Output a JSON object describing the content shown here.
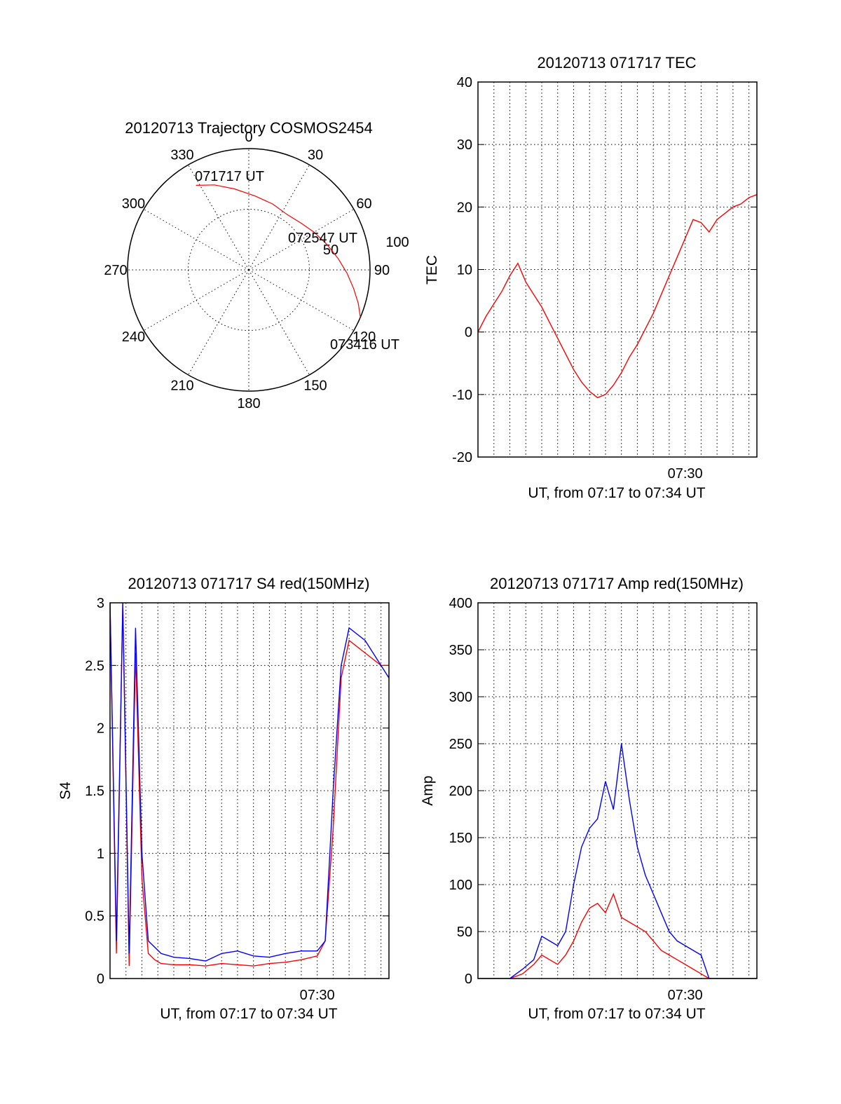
{
  "chart_data": [
    {
      "type": "scatter",
      "subtype": "polar-sky-trajectory",
      "title": "20120713 Trajectory COSMOS2454",
      "azimuth_labels": [
        "0",
        "30",
        "60",
        "90",
        "120",
        "150",
        "180",
        "210",
        "240",
        "270",
        "300",
        "330"
      ],
      "elevation_ring_labels": [
        "50",
        "100"
      ],
      "track_color": "#ff0000",
      "annotations": [
        "071717 UT",
        "072547 UT",
        "073416 UT"
      ],
      "track": [
        {
          "azimuth": 328,
          "zenith_deg": 74
        },
        {
          "azimuth": 338,
          "zenith_deg": 68
        },
        {
          "azimuth": 350,
          "zenith_deg": 61
        },
        {
          "azimuth": 5,
          "zenith_deg": 55
        },
        {
          "azimuth": 20,
          "zenith_deg": 52
        },
        {
          "azimuth": 35,
          "zenith_deg": 50
        },
        {
          "azimuth": 48,
          "zenith_deg": 52
        },
        {
          "azimuth": 60,
          "zenith_deg": 56
        },
        {
          "azimuth": 72,
          "zenith_deg": 61
        },
        {
          "azimuth": 83,
          "zenith_deg": 67
        },
        {
          "azimuth": 92,
          "zenith_deg": 73
        },
        {
          "azimuth": 100,
          "zenith_deg": 79
        },
        {
          "azimuth": 107,
          "zenith_deg": 85
        },
        {
          "azimuth": 113,
          "zenith_deg": 90
        }
      ]
    },
    {
      "type": "line",
      "title": "20120713 071717 TEC",
      "ylabel": "TEC",
      "xlabel": "UT, from 07:17 to 07:34 UT",
      "x_unit": "minutes after 07:17",
      "xlim": [
        0,
        17.5
      ],
      "ylim": [
        -20,
        40
      ],
      "yticks": [
        "40",
        "30",
        "20",
        "10",
        "0",
        "-10",
        "-20"
      ],
      "xtick_labels": [
        {
          "x": 13,
          "label": "07:30"
        }
      ],
      "grid": true,
      "series": [
        {
          "color": "#ff0000",
          "x": [
            0,
            0.5,
            1,
            1.5,
            2,
            2.5,
            3,
            3.5,
            4,
            4.5,
            5,
            5.5,
            6,
            6.5,
            7,
            7.5,
            8,
            8.5,
            9,
            9.5,
            10,
            10.5,
            11,
            11.5,
            12,
            12.5,
            13,
            13.5,
            14,
            14.5,
            15,
            15.5,
            16,
            16.5,
            17,
            17.5
          ],
          "y": [
            0,
            2.5,
            4.5,
            6.5,
            9,
            11,
            8,
            6,
            4,
            1.5,
            -1,
            -3.5,
            -6,
            -8,
            -9.5,
            -10.5,
            -10,
            -8.5,
            -6.5,
            -4,
            -2,
            0.5,
            3,
            6,
            9,
            12,
            15,
            18,
            17.5,
            16,
            18,
            19,
            20,
            20.5,
            21.5,
            22
          ]
        }
      ]
    },
    {
      "type": "line",
      "title": "20120713 071717 S4 red(150MHz)",
      "ylabel": "S4",
      "xlabel": "UT, from 07:17 to 07:34 UT",
      "x_unit": "minutes after 07:17",
      "xlim": [
        0,
        17.5
      ],
      "ylim": [
        0,
        3
      ],
      "yticks": [
        "3",
        "2.5",
        "2",
        "1.5",
        "1",
        "0.5",
        "0"
      ],
      "xtick_labels": [
        {
          "x": 13,
          "label": "07:30"
        }
      ],
      "grid": true,
      "series": [
        {
          "color": "#ff0000",
          "x": [
            0,
            0.4,
            0.8,
            1.2,
            1.6,
            2.0,
            2.4,
            2.8,
            3.2,
            4,
            5,
            6,
            7,
            8,
            9,
            10,
            11,
            12,
            13,
            13.5,
            14,
            14.5,
            15,
            16,
            17,
            17.5
          ],
          "y": [
            3,
            0.2,
            3,
            0.1,
            2.6,
            0.8,
            0.2,
            0.15,
            0.12,
            0.11,
            0.11,
            0.1,
            0.12,
            0.11,
            0.1,
            0.12,
            0.13,
            0.15,
            0.18,
            0.3,
            1.2,
            2.4,
            2.7,
            2.6,
            2.5,
            2.5
          ]
        },
        {
          "color": "#0000ff",
          "x": [
            0,
            0.4,
            0.8,
            1.2,
            1.6,
            2.0,
            2.4,
            2.8,
            3.2,
            4,
            5,
            6,
            7,
            8,
            9,
            10,
            11,
            12,
            13,
            13.5,
            14,
            14.5,
            15,
            16,
            17,
            17.5
          ],
          "y": [
            3,
            0.3,
            3,
            0.2,
            2.8,
            1.0,
            0.3,
            0.25,
            0.2,
            0.17,
            0.16,
            0.14,
            0.2,
            0.22,
            0.18,
            0.17,
            0.2,
            0.22,
            0.22,
            0.3,
            1.5,
            2.5,
            2.8,
            2.7,
            2.5,
            2.4
          ]
        }
      ]
    },
    {
      "type": "line",
      "title": "20120713 071717 Amp red(150MHz)",
      "ylabel": "Amp",
      "xlabel": "UT, from 07:17 to 07:34 UT",
      "x_unit": "minutes after 07:17",
      "xlim": [
        0,
        17.5
      ],
      "ylim": [
        0,
        400
      ],
      "yticks": [
        "400",
        "350",
        "300",
        "250",
        "200",
        "150",
        "100",
        "50",
        "0"
      ],
      "xtick_labels": [
        {
          "x": 13,
          "label": "07:30"
        }
      ],
      "grid": true,
      "series": [
        {
          "color": "#ff0000",
          "x": [
            0,
            2,
            2.8,
            3.5,
            4,
            4.5,
            5,
            5.5,
            6,
            6.5,
            7,
            7.5,
            8,
            8.5,
            9,
            9.5,
            10,
            10.5,
            11,
            11.5,
            12,
            12.5,
            13,
            14,
            14.5,
            17.5
          ],
          "y": [
            0,
            0,
            5,
            15,
            25,
            20,
            15,
            25,
            40,
            60,
            75,
            80,
            70,
            90,
            65,
            60,
            55,
            50,
            40,
            30,
            25,
            20,
            15,
            5,
            0,
            0
          ]
        },
        {
          "color": "#0000ff",
          "x": [
            0,
            2,
            2.8,
            3.5,
            4,
            4.5,
            5,
            5.5,
            6,
            6.5,
            7,
            7.5,
            8,
            8.5,
            9,
            9.5,
            10,
            10.5,
            11,
            11.5,
            12,
            12.5,
            13,
            14,
            14.5,
            17.5
          ],
          "y": [
            0,
            0,
            10,
            20,
            45,
            40,
            35,
            50,
            100,
            140,
            160,
            170,
            210,
            180,
            250,
            190,
            140,
            110,
            90,
            70,
            50,
            40,
            35,
            25,
            0,
            0
          ]
        }
      ]
    }
  ]
}
